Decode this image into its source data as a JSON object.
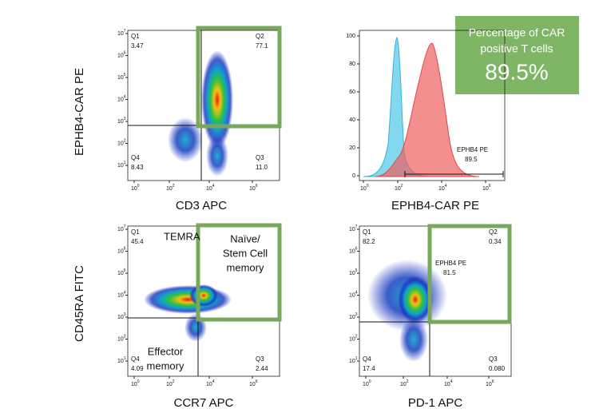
{
  "panels": [
    {
      "y_label": "EPHB4-CAR PE",
      "x_label": "CD3 APC",
      "y_ticks": [
        {
          "base": "10",
          "exp": "7"
        },
        {
          "base": "10",
          "exp": "6"
        },
        {
          "base": "10",
          "exp": "5"
        },
        {
          "base": "10",
          "exp": "4"
        },
        {
          "base": "10",
          "exp": "3"
        },
        {
          "base": "10",
          "exp": "2"
        },
        {
          "base": "10",
          "exp": "1"
        }
      ],
      "x_ticks": [
        {
          "base": "10",
          "exp": "0"
        },
        {
          "base": "10",
          "exp": "2"
        },
        {
          "base": "10",
          "exp": "4"
        },
        {
          "base": "10",
          "exp": "6"
        }
      ],
      "labels": [
        {
          "name": "Q1",
          "value": "3.47"
        },
        {
          "name": "Q2",
          "value": "77.1"
        },
        {
          "name": "Q3",
          "value": "11.0"
        },
        {
          "name": "Q4",
          "value": "8.43"
        }
      ]
    },
    {
      "x_label": "EPHB4-CAR PE",
      "y_ticks": [
        "100",
        "80",
        "60",
        "40",
        "20",
        "0"
      ],
      "x_ticks": [
        {
          "base": "10",
          "exp": "0"
        },
        {
          "base": "10",
          "exp": "2"
        },
        {
          "base": "10",
          "exp": "4"
        },
        {
          "base": "10",
          "exp": "6"
        }
      ],
      "labels": [
        {
          "name": "EPHB4 PE",
          "value": "89.5"
        }
      ]
    },
    {
      "y_label": "CD45RA FITC",
      "x_label": "CCR7 APC",
      "y_ticks": [
        {
          "base": "10",
          "exp": "7"
        },
        {
          "base": "10",
          "exp": "6"
        },
        {
          "base": "10",
          "exp": "5"
        },
        {
          "base": "10",
          "exp": "4"
        },
        {
          "base": "10",
          "exp": "3"
        },
        {
          "base": "10",
          "exp": "2"
        },
        {
          "base": "10",
          "exp": "1"
        }
      ],
      "x_ticks": [
        {
          "base": "10",
          "exp": "0"
        },
        {
          "base": "10",
          "exp": "2"
        },
        {
          "base": "10",
          "exp": "4"
        },
        {
          "base": "10",
          "exp": "6"
        }
      ],
      "labels": [
        {
          "name": "Q1",
          "value": "45.4"
        },
        {
          "name": "Q3",
          "value": "2.44"
        },
        {
          "name": "Q4",
          "value": "4.09"
        }
      ],
      "annotations": [
        [
          "TEMRA"
        ],
        [
          "Naïve/",
          "Stem Cell",
          "memory"
        ],
        [
          "Effector",
          "memory"
        ]
      ]
    },
    {
      "x_label": "PD-1 APC",
      "y_ticks": [
        {
          "base": "10",
          "exp": "7"
        },
        {
          "base": "10",
          "exp": "6"
        },
        {
          "base": "10",
          "exp": "5"
        },
        {
          "base": "10",
          "exp": "4"
        },
        {
          "base": "10",
          "exp": "3"
        },
        {
          "base": "10",
          "exp": "2"
        },
        {
          "base": "10",
          "exp": "1"
        }
      ],
      "x_ticks": [
        {
          "base": "10",
          "exp": "0"
        },
        {
          "base": "10",
          "exp": "2"
        },
        {
          "base": "10",
          "exp": "4"
        },
        {
          "base": "10",
          "exp": "6"
        }
      ],
      "labels": [
        {
          "name": "Q1",
          "value": "82.2"
        },
        {
          "name": "Q2",
          "value": "0.34"
        },
        {
          "name": "EPHB4 PE",
          "value": "81.5"
        },
        {
          "name": "Q3",
          "value": "0.080"
        },
        {
          "name": "Q4",
          "value": "17.4"
        }
      ]
    }
  ],
  "callout": {
    "lines": [
      "Percentage of CAR",
      "positive T cells"
    ],
    "value": "89.5%"
  }
}
